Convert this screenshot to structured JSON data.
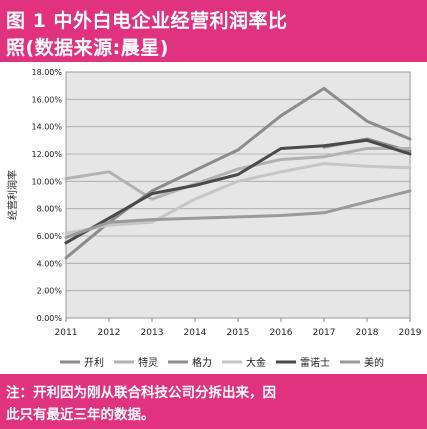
{
  "header": {
    "title_line1": "图 1    中外白电企业经营利润率比",
    "title_line2": "照(数据来源:晨星)"
  },
  "footer": {
    "note_line1": "注：开利因为刚从联合科技公司分拆出来，因",
    "note_line2": "此只有最近三年的数据。"
  },
  "chart_data": {
    "type": "line",
    "title": "",
    "xlabel": "",
    "ylabel": "经营利润率",
    "categories": [
      "2011",
      "2012",
      "2013",
      "2014",
      "2015",
      "2016",
      "2017",
      "2018",
      "2019"
    ],
    "ylim": [
      0,
      18
    ],
    "yticks": [
      "0.00%",
      "2.00%",
      "4.00%",
      "6.00%",
      "8.00%",
      "10.00%",
      "12.00%",
      "14.00%",
      "16.00%",
      "18.00%"
    ],
    "grid": true,
    "legend_position": "bottom",
    "series": [
      {
        "name": "开利",
        "color": "#8a8a8a",
        "values": [
          null,
          null,
          null,
          null,
          null,
          null,
          12.5,
          13.1,
          12.2
        ]
      },
      {
        "name": "特灵",
        "color": "#b2b2b2",
        "values": [
          10.2,
          10.7,
          8.7,
          9.8,
          10.9,
          11.6,
          11.8,
          12.4,
          12.4
        ]
      },
      {
        "name": "格力",
        "color": "#8c8c8c",
        "values": [
          4.4,
          7.0,
          9.3,
          10.8,
          12.3,
          14.8,
          16.8,
          14.4,
          13.1
        ]
      },
      {
        "name": "大金",
        "color": "#c6c6c6",
        "values": [
          6.2,
          6.8,
          7.0,
          8.7,
          10.0,
          10.7,
          11.3,
          11.1,
          11.0
        ]
      },
      {
        "name": "雷诺士",
        "color": "#4a4a4a",
        "values": [
          5.5,
          7.3,
          9.1,
          9.7,
          10.5,
          12.4,
          12.6,
          13.0,
          12.0
        ]
      },
      {
        "name": "美的",
        "color": "#9a9a9a",
        "values": [
          5.9,
          7.0,
          7.2,
          7.3,
          7.4,
          7.5,
          7.7,
          8.5,
          9.3
        ]
      }
    ]
  }
}
